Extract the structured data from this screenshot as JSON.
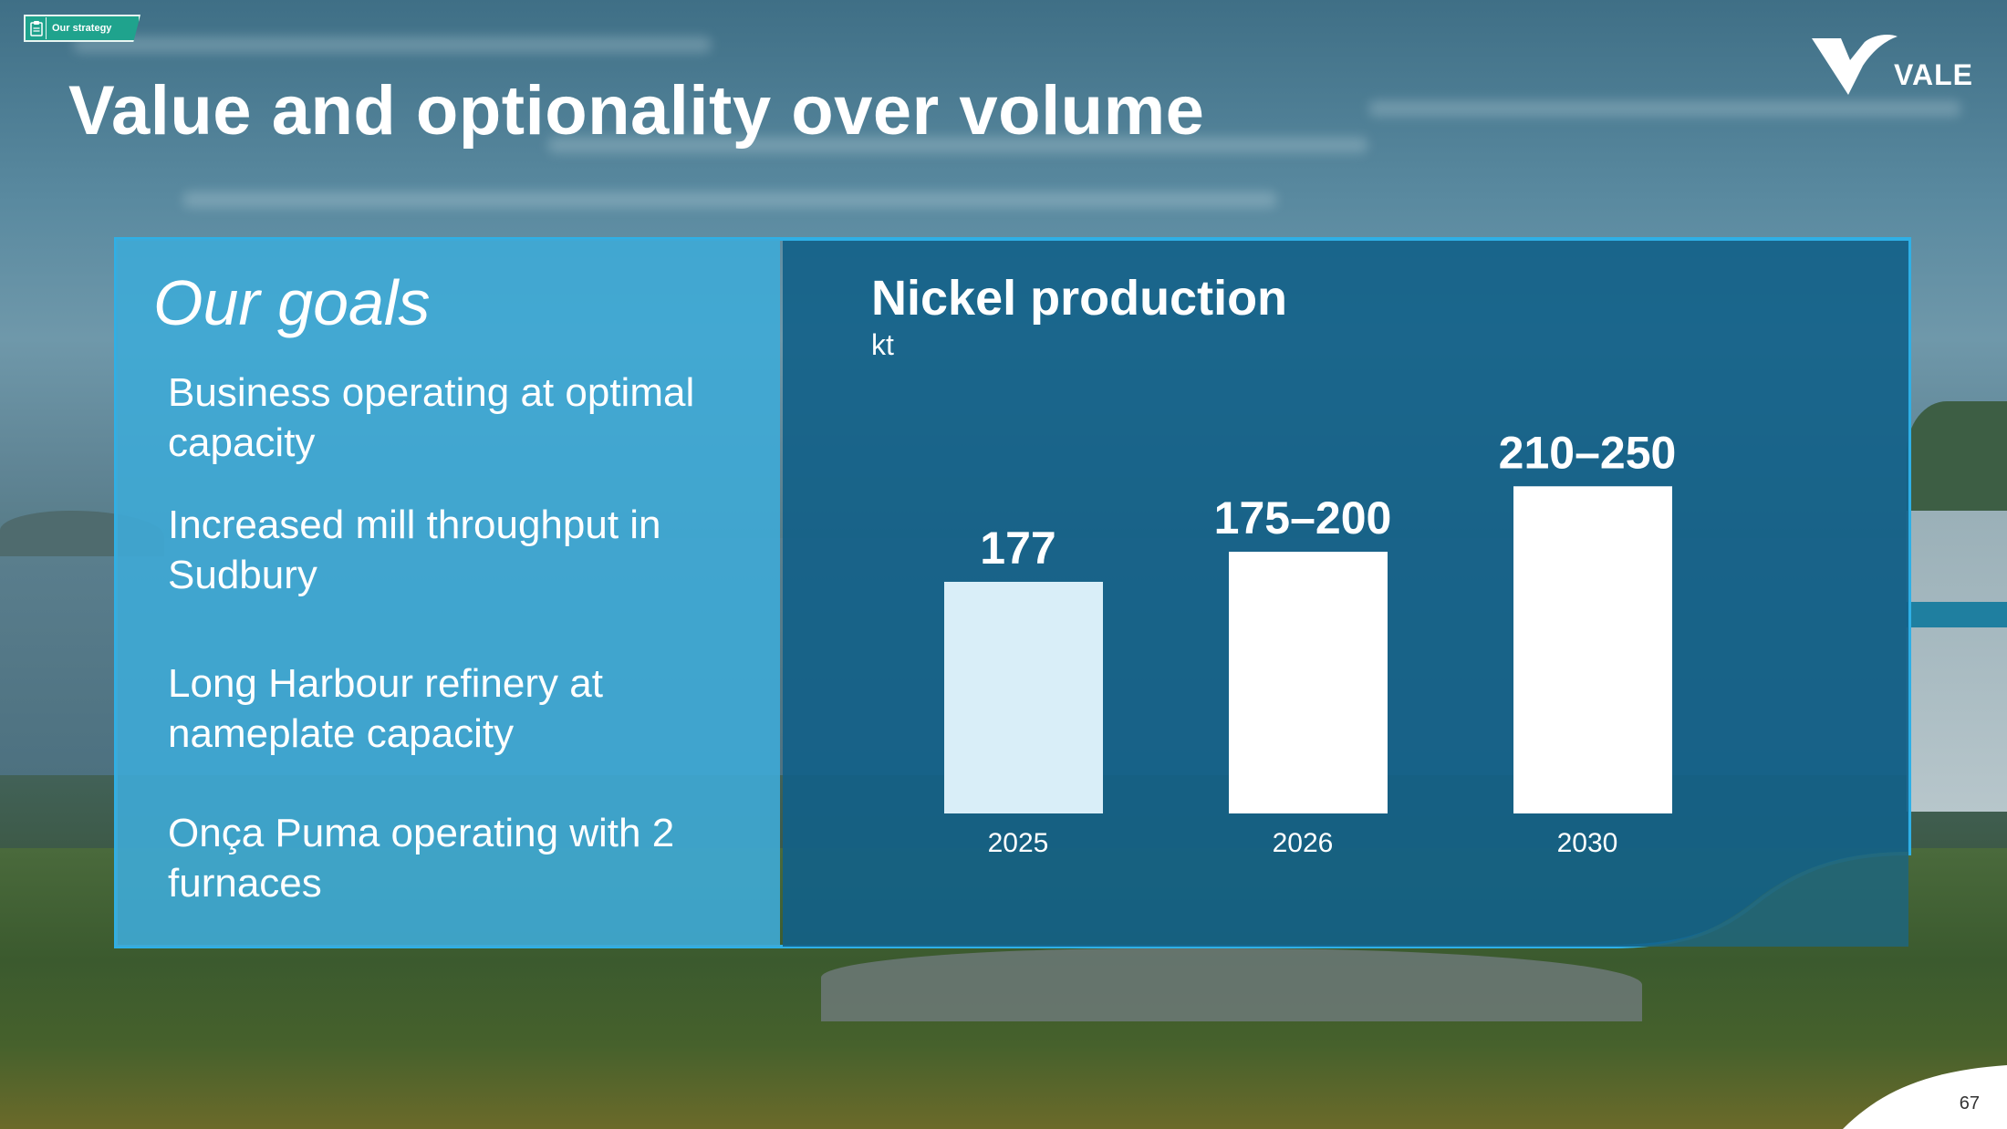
{
  "header": {
    "section_tag": "Our strategy",
    "title": "Value and optionality over volume",
    "logo_text": "VALE"
  },
  "goals": {
    "title": "Our goals",
    "items": [
      "Business operating at optimal capacity",
      "Increased mill throughput in Sudbury",
      "Long Harbour refinery at nameplate capacity",
      "Onça Puma operating with 2 furnaces"
    ]
  },
  "chart_data": {
    "type": "bar",
    "title": "Nickel production",
    "unit": "kt",
    "categories": [
      "2025",
      "2026",
      "2030"
    ],
    "values": [
      177,
      200,
      250
    ],
    "value_ranges": [
      [
        177,
        177
      ],
      [
        175,
        200
      ],
      [
        210,
        250
      ]
    ],
    "data_labels": [
      "177",
      "175–200",
      "210–250"
    ],
    "bar_colors": [
      "#d9eef8",
      "#ffffff",
      "#ffffff"
    ],
    "xlabel": "",
    "ylabel": "",
    "grid": false,
    "legend": "none"
  },
  "footer": {
    "page_number": "67"
  },
  "colors": {
    "goals_panel": "#3eaad6",
    "chart_panel": "#126188",
    "tag_green": "#1fa38d",
    "accent_blue": "#2fb0e6"
  }
}
